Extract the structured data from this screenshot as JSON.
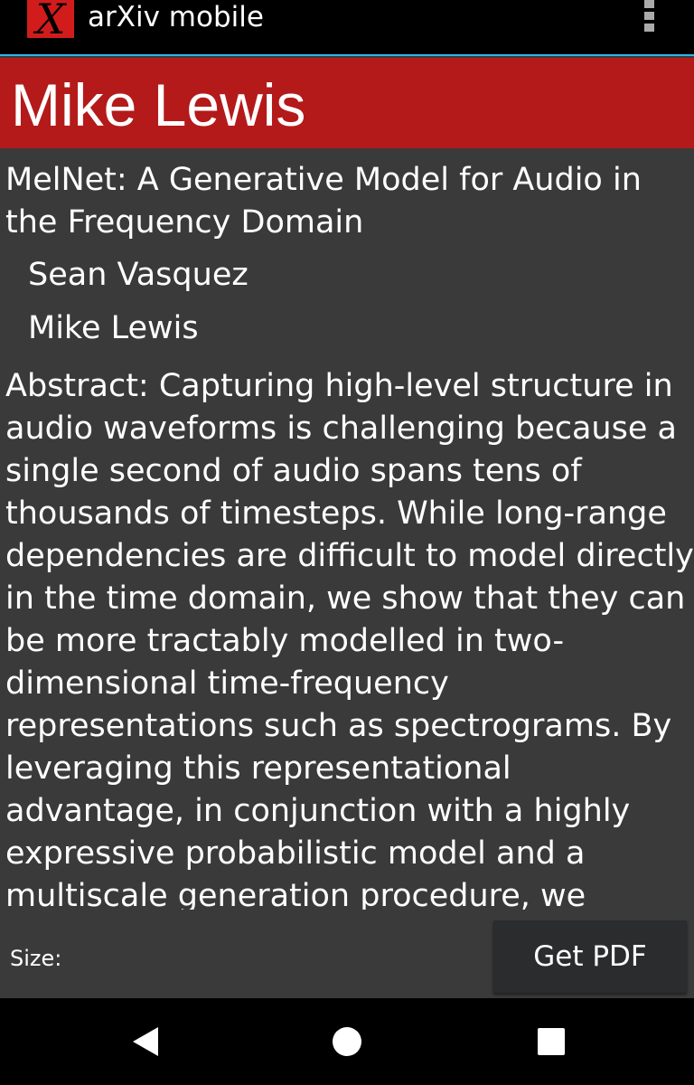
{
  "app_bar": {
    "logo_glyph": "X",
    "title": "arXiv mobile",
    "menu_icon": "overflow-menu-icon"
  },
  "header": {
    "author_name": "Mike Lewis",
    "background_color": "#b41a1a"
  },
  "paper": {
    "title": "MelNet: A Generative Model for Audio in the Frequency Domain",
    "authors": [
      "Sean Vasquez",
      "Mike Lewis"
    ],
    "abstract": "Abstract:   Capturing high-level structure in audio waveforms is challenging because a single second of audio spans tens of thousands of timesteps. While long-range dependencies are difficult to model directly in the time domain, we show that they can be more tractably modelled in two-dimensional time-frequency representations such as spectrograms. By leveraging this representational advantage, in conjunction with a highly expressive probabilistic model and a multiscale generation procedure, we"
  },
  "bottom_bar": {
    "size_label": "Size:",
    "pdf_button_label": "Get PDF"
  },
  "nav_bar": {
    "icons": [
      "back-icon",
      "home-icon",
      "recents-icon"
    ]
  }
}
